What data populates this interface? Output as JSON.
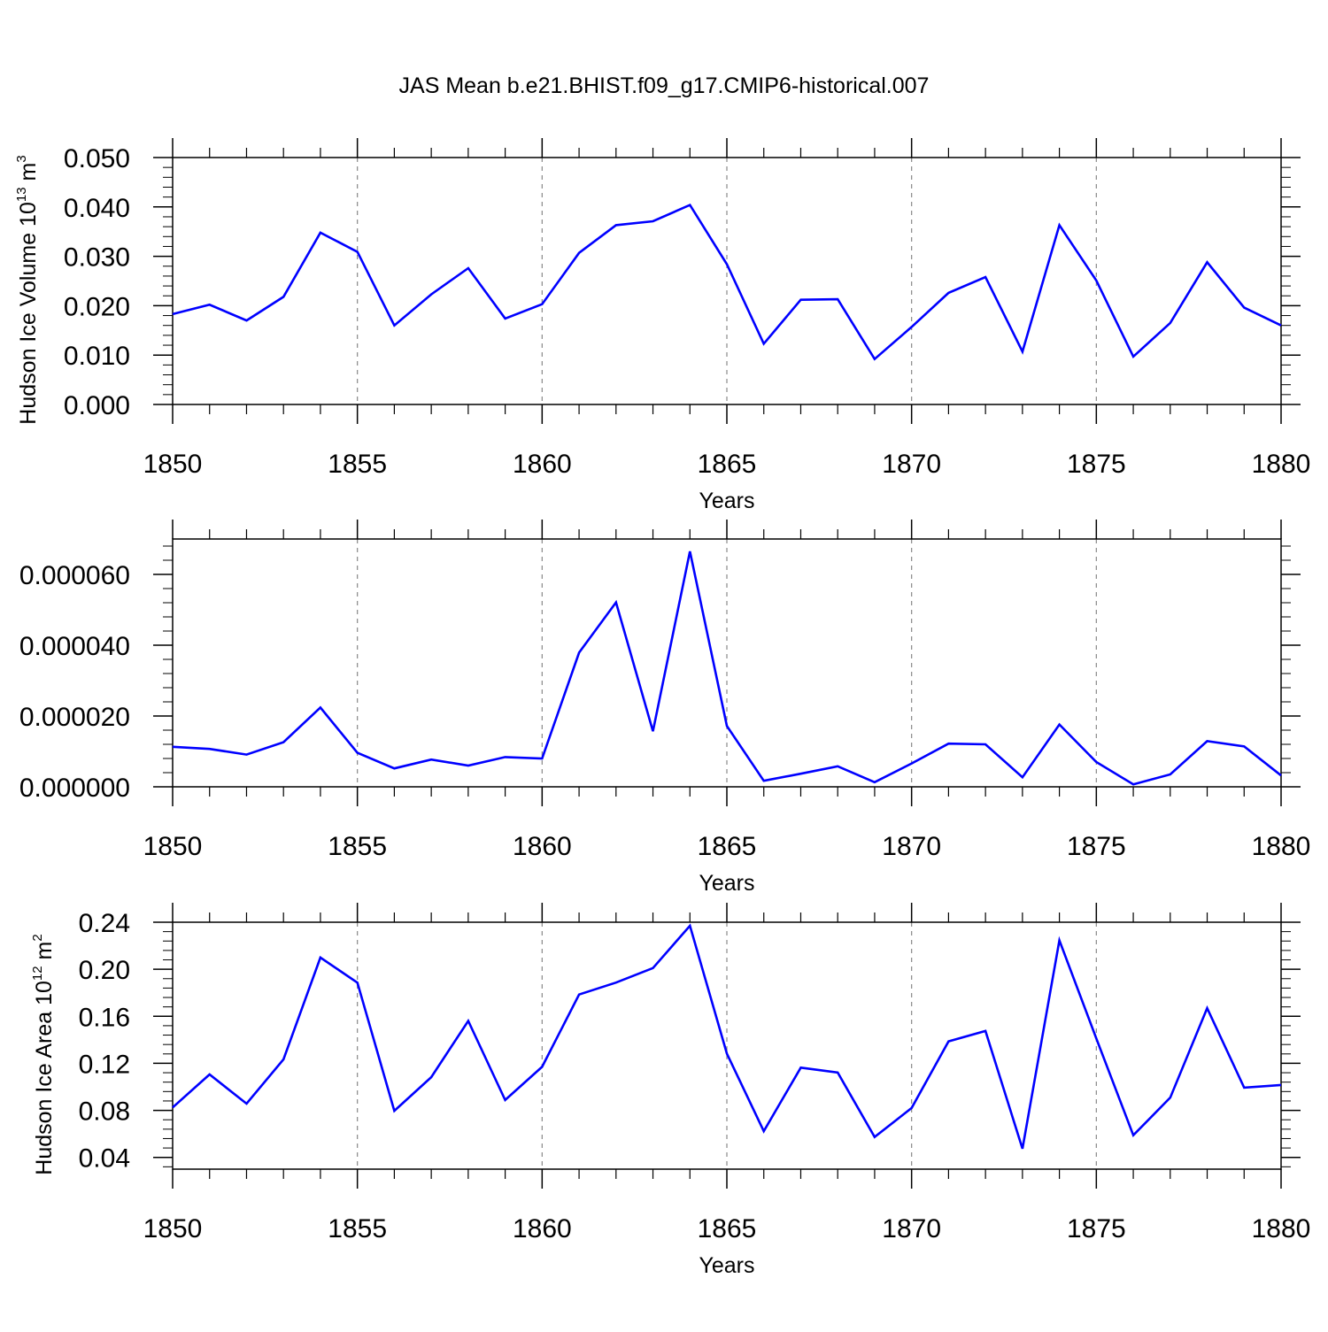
{
  "title": "JAS Mean b.e21.BHIST.f09_g17.CMIP6-historical.007",
  "colors": {
    "line": "#0000ff",
    "frame": "#000000",
    "grid": "#888888"
  },
  "chart_data": [
    {
      "type": "line",
      "ylabel": "Hudson Ice Volume 10",
      "ylabel_sup1": "13",
      "ylabel_mid": " m",
      "ylabel_sup2": "3",
      "xlabel": "Years",
      "xlim": [
        1850,
        1880
      ],
      "ylim": [
        0.0,
        0.05
      ],
      "yticks": [
        0.0,
        0.01,
        0.02,
        0.03,
        0.04,
        0.05
      ],
      "ytick_labels": [
        "0.000",
        "0.010",
        "0.020",
        "0.030",
        "0.040",
        "0.050"
      ],
      "xticks": [
        1850,
        1855,
        1860,
        1865,
        1870,
        1875,
        1880
      ],
      "xtick_labels": [
        "1850",
        "1855",
        "1860",
        "1865",
        "1870",
        "1875",
        "1880"
      ],
      "grid": "vertical dashed at major x ticks",
      "x": [
        1850,
        1851,
        1852,
        1853,
        1854,
        1855,
        1856,
        1857,
        1858,
        1859,
        1860,
        1861,
        1862,
        1863,
        1864,
        1865,
        1866,
        1867,
        1868,
        1869,
        1870,
        1871,
        1872,
        1873,
        1874,
        1875,
        1876,
        1877,
        1878,
        1879,
        1880
      ],
      "values": [
        0.0183,
        0.0202,
        0.017,
        0.0218,
        0.0348,
        0.0309,
        0.016,
        0.0223,
        0.0276,
        0.0174,
        0.0203,
        0.0307,
        0.0363,
        0.0371,
        0.0404,
        0.0284,
        0.0123,
        0.0212,
        0.0213,
        0.0092,
        0.0157,
        0.0226,
        0.0258,
        0.0107,
        0.0363,
        0.0251,
        0.0097,
        0.0165,
        0.0288,
        0.0196,
        0.016
      ]
    },
    {
      "type": "line",
      "ylabel": "",
      "xlabel": "Years",
      "xlim": [
        1850,
        1880
      ],
      "ylim": [
        0.0,
        7e-05
      ],
      "yticks": [
        0.0,
        2e-05,
        4e-05,
        6e-05
      ],
      "ytick_labels": [
        "0.000000",
        "0.000020",
        "0.000040",
        "0.000060"
      ],
      "xticks": [
        1850,
        1855,
        1860,
        1865,
        1870,
        1875,
        1880
      ],
      "xtick_labels": [
        "1850",
        "1855",
        "1860",
        "1865",
        "1870",
        "1875",
        "1880"
      ],
      "grid": "vertical dashed at major x ticks",
      "x": [
        1850,
        1851,
        1852,
        1853,
        1854,
        1855,
        1856,
        1857,
        1858,
        1859,
        1860,
        1861,
        1862,
        1863,
        1864,
        1865,
        1866,
        1867,
        1868,
        1869,
        1870,
        1871,
        1872,
        1873,
        1874,
        1875,
        1876,
        1877,
        1878,
        1879,
        1880
      ],
      "values": [
        1.13e-05,
        1.07e-05,
        9.1e-06,
        1.26e-05,
        2.24e-05,
        9.6e-06,
        5.2e-06,
        7.7e-06,
        6e-06,
        8.4e-06,
        8e-06,
        3.79e-05,
        5.21e-05,
        1.57e-05,
        6.65e-05,
        1.72e-05,
        1.7e-06,
        3.7e-06,
        5.8e-06,
        1.3e-06,
        6.6e-06,
        1.22e-05,
        1.2e-05,
        2.7e-06,
        1.76e-05,
        7e-06,
        7e-07,
        3.5e-06,
        1.29e-05,
        1.14e-05,
        3.2e-06
      ]
    },
    {
      "type": "line",
      "ylabel": "Hudson Ice Area 10",
      "ylabel_sup1": "12",
      "ylabel_mid": " m",
      "ylabel_sup2": "2",
      "xlabel": "Years",
      "xlim": [
        1850,
        1880
      ],
      "ylim": [
        0.03,
        0.24
      ],
      "yticks": [
        0.04,
        0.08,
        0.12,
        0.16,
        0.2,
        0.24
      ],
      "ytick_labels": [
        "0.04",
        "0.08",
        "0.12",
        "0.16",
        "0.20",
        "0.24"
      ],
      "xticks": [
        1850,
        1855,
        1860,
        1865,
        1870,
        1875,
        1880
      ],
      "xtick_labels": [
        "1850",
        "1855",
        "1860",
        "1865",
        "1870",
        "1875",
        "1880"
      ],
      "grid": "vertical dashed at major x ticks",
      "x": [
        1850,
        1851,
        1852,
        1853,
        1854,
        1855,
        1856,
        1857,
        1858,
        1859,
        1860,
        1861,
        1862,
        1863,
        1864,
        1865,
        1866,
        1867,
        1868,
        1869,
        1870,
        1871,
        1872,
        1873,
        1874,
        1875,
        1876,
        1877,
        1878,
        1879,
        1880
      ],
      "values": [
        0.0825,
        0.1105,
        0.0857,
        0.1233,
        0.21,
        0.1886,
        0.0796,
        0.1082,
        0.1561,
        0.0888,
        0.117,
        0.1785,
        0.1887,
        0.201,
        0.237,
        0.1283,
        0.0623,
        0.1163,
        0.1122,
        0.0573,
        0.082,
        0.1387,
        0.1475,
        0.0474,
        0.2246,
        0.1412,
        0.0588,
        0.0908,
        0.1669,
        0.0993,
        0.1016
      ]
    }
  ]
}
